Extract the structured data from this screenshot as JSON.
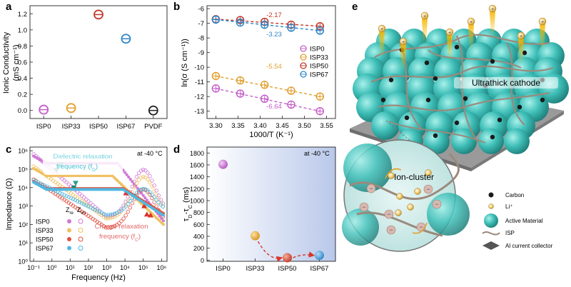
{
  "colors": {
    "isp0": "#c45fc9",
    "isp33": "#e0a030",
    "isp50": "#c0392b",
    "isp67": "#2f86c8",
    "pvdf": "#222222",
    "zre_isp0": "#cf79d6",
    "zre_isp33": "#f0c060",
    "zre_isp50": "#e05040",
    "zre_isp67": "#50b8e0",
    "teal": "#3fbfb8",
    "fiber": "#9a8a7c",
    "slab": "#8c8c8c",
    "annot_blue": "#3fbfd0",
    "annot_red": "#e26a6a"
  },
  "chart_data": [
    {
      "id": "a",
      "panel_label": "a",
      "type": "scatter",
      "ylabel_line1": "Ionic Conductivity",
      "ylabel_line2": "(mS cm⁻¹)",
      "categories": [
        "ISP0",
        "ISP33",
        "ISP50",
        "ISP67",
        "PVDF"
      ],
      "values": [
        0.01,
        0.03,
        1.19,
        0.89,
        0.0
      ],
      "ylim": [
        -0.1,
        1.3
      ],
      "yticks": [
        "0.0",
        "0.2",
        "0.4",
        "0.6",
        "0.8",
        "1.0",
        "1.2"
      ]
    },
    {
      "id": "b",
      "panel_label": "b",
      "type": "scatter",
      "xlabel": "1000/T (K⁻¹)",
      "ylabel": "ln(σ (S cm⁻¹))",
      "xlim": [
        3.28,
        3.57
      ],
      "ylim": [
        -13.5,
        -5.8
      ],
      "xticks": [
        "3.30",
        "3.35",
        "3.40",
        "3.45",
        "3.50",
        "3.55"
      ],
      "yticks": [
        "-6",
        "-7",
        "-8",
        "-9",
        "-10",
        "-11",
        "-12",
        "-13"
      ],
      "x": [
        3.3,
        3.355,
        3.41,
        3.47,
        3.535
      ],
      "series": [
        {
          "name": "ISP0",
          "values": [
            -11.45,
            -11.8,
            -12.15,
            -12.55,
            -13.0
          ],
          "slope_label": "-6.64"
        },
        {
          "name": "ISP33",
          "values": [
            -10.6,
            -10.9,
            -11.2,
            -11.6,
            -12.0
          ],
          "slope_label": "-5.54"
        },
        {
          "name": "ISP50",
          "values": [
            -6.72,
            -6.78,
            -6.9,
            -7.1,
            -7.2
          ],
          "slope_label": "-2.17"
        },
        {
          "name": "ISP67",
          "values": [
            -6.75,
            -6.95,
            -7.1,
            -7.3,
            -7.5
          ],
          "slope_label": "-3.23"
        }
      ]
    },
    {
      "id": "c",
      "panel_label": "c",
      "type": "scatter",
      "xlabel": "Frequency (Hz)",
      "ylabel": "Impedance (Ω)",
      "note": "at -40 °C",
      "xticks": [
        "10⁻¹",
        "10⁰",
        "10¹",
        "10²",
        "10³",
        "10⁴",
        "10⁵",
        "10⁶"
      ],
      "yticks": [
        "10⁰",
        "10¹",
        "10²",
        "10³",
        "10⁴",
        "10⁵",
        "10⁶"
      ],
      "xlim_log10": [
        -1.2,
        6.3
      ],
      "ylim_log10": [
        0,
        6.2
      ],
      "legend_header_zre": "Z",
      "legend_header_zre_sub": "re",
      "legend_header_zim": "Z",
      "legend_header_zim_sub": "im",
      "annotation_dielectric": "Dielectric relaxation",
      "annotation_dielectric_2": "frequency (f",
      "annotation_dielectric_sub": "D",
      "annotation_charge": "Charge relaxation",
      "annotation_charge_2": "frequency (f",
      "annotation_charge_sub": "C",
      "series": [
        {
          "name": "ISP0",
          "zre_plateau_log10": 5.32,
          "zre_end_log10": 2.2,
          "zim_bump_log10": [
            2.4,
            5.0
          ],
          "marker_zre": [
            0.5,
            5.25
          ],
          "marker_zim": [
            5.2,
            2.55
          ]
        },
        {
          "name": "ISP33",
          "zre_plateau_log10": 4.65,
          "zre_end_log10": 2.0,
          "zim_bump_log10": [
            2.3,
            4.6
          ],
          "marker_zre": [
            0.25,
            4.95
          ],
          "marker_zim": [
            4.05,
            3.7
          ]
        },
        {
          "name": "ISP50",
          "zre_plateau_log10": 3.95,
          "zre_end_log10": 2.6,
          "zim_bump_log10": [
            1.8,
            3.9
          ],
          "marker_zre": [
            1.2,
            4.0
          ],
          "marker_zim": [
            5.05,
            3.0
          ]
        },
        {
          "name": "ISP67",
          "zre_plateau_log10": 3.9,
          "zre_end_log10": 2.5,
          "zim_bump_log10": [
            2.5,
            3.9
          ],
          "marker_zre": [
            1.3,
            4.25
          ],
          "marker_zim": [
            5.4,
            2.5
          ]
        }
      ]
    },
    {
      "id": "d",
      "panel_label": "d",
      "type": "scatter",
      "ylabel": "τ",
      "ylabel_sub_d": "D",
      "ylabel_mid": "-τ",
      "ylabel_sub_c": "C",
      "ylabel_unit": " (ms)",
      "note": "at -40 °C",
      "categories": [
        "ISP0",
        "ISP33",
        "ISP50",
        "ISP67"
      ],
      "values": [
        1610,
        410,
        40,
        80
      ],
      "ylim": [
        -20,
        1900
      ],
      "yticks": [
        "0",
        "200",
        "400",
        "600",
        "800",
        "1000",
        "1200",
        "1400",
        "1600",
        "1800"
      ]
    }
  ],
  "schematic": {
    "panel_label": "e",
    "label_cathode": "Ultrathick cathode",
    "label_cluster": "Ion-cluster",
    "legend": [
      {
        "icon": "carbon-icon",
        "label": "Carbon"
      },
      {
        "icon": "lithium-ion-icon",
        "label": "Li⁺"
      },
      {
        "icon": "active-material-icon",
        "label": "Active Material"
      },
      {
        "icon": "isp-fiber-icon",
        "label": "ISP"
      },
      {
        "icon": "current-collector-icon",
        "label": "Al current collector"
      }
    ]
  }
}
